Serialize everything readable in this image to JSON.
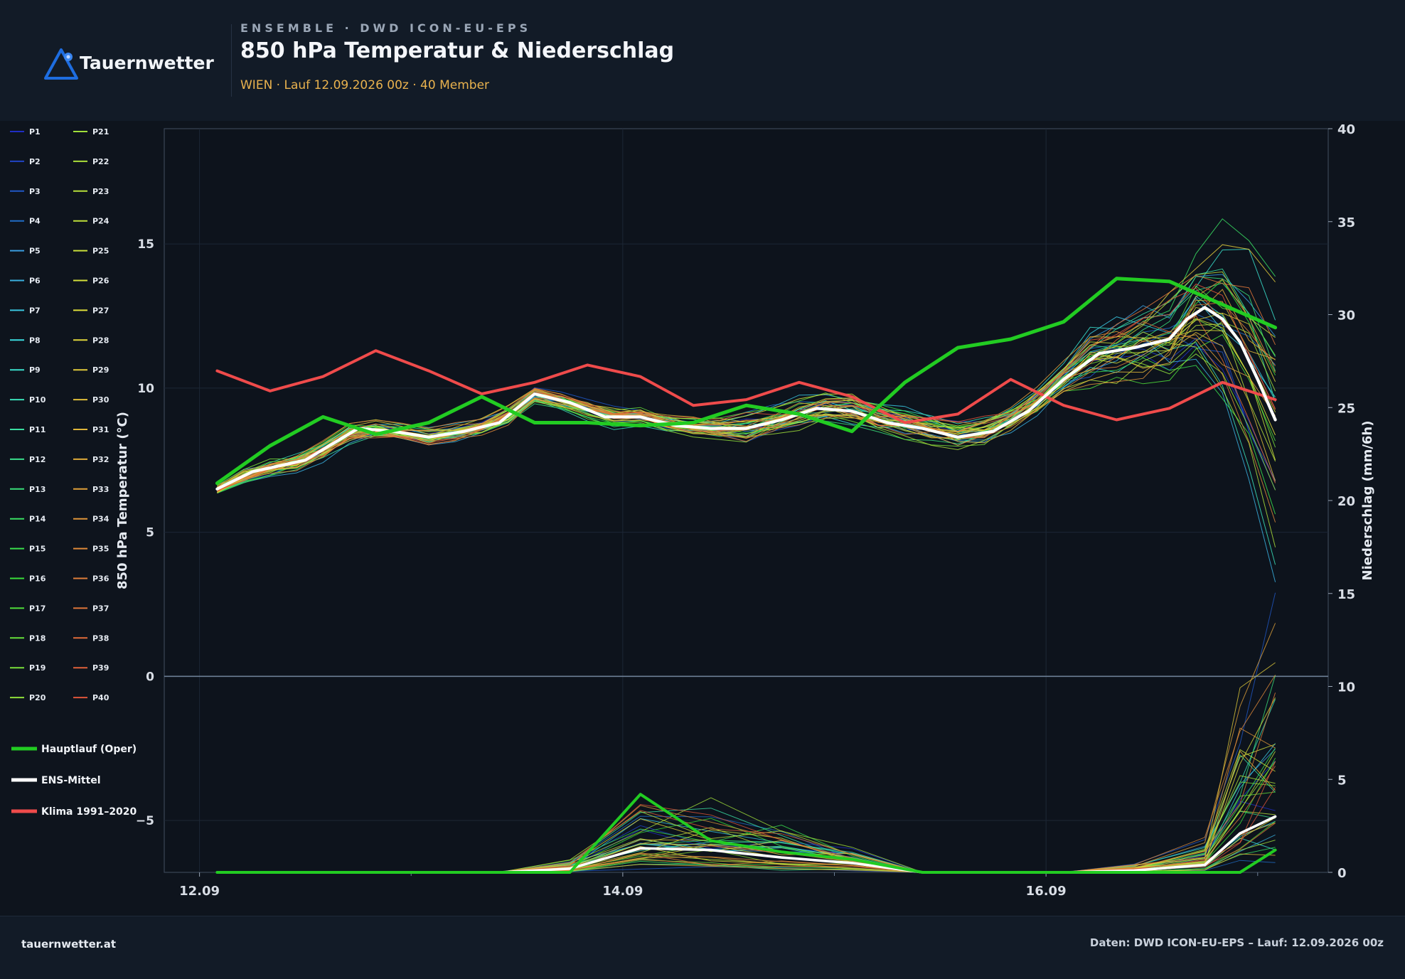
{
  "header": {
    "brand": "Tauernwetter",
    "kicker": "ENSEMBLE · DWD ICON-EU-EPS",
    "title": "850 hPa Temperatur & Niederschlag",
    "subtitle": "WIEN · Lauf 12.09.2026 00z · 40 Member"
  },
  "footer": {
    "site": "tauernwetter.at",
    "source": "Daten: DWD ICON-EU-EPS – Lauf: 12.09.2026 00z"
  },
  "legend": {
    "members": [
      "P1",
      "P2",
      "P3",
      "P4",
      "P5",
      "P6",
      "P7",
      "P8",
      "P9",
      "P10",
      "P11",
      "P12",
      "P13",
      "P14",
      "P15",
      "P16",
      "P17",
      "P18",
      "P19",
      "P20",
      "P21",
      "P22",
      "P23",
      "P24",
      "P25",
      "P26",
      "P27",
      "P28",
      "P29",
      "P30",
      "P31",
      "P32",
      "P33",
      "P34",
      "P35",
      "P36",
      "P37",
      "P38",
      "P39",
      "P40"
    ],
    "oper": "Hauptlauf (Oper)",
    "mean": "ENS-Mittel",
    "clim": "Klima 1991–2020"
  },
  "colors": {
    "oper": "#22cc22",
    "mean": "#ffffff",
    "clim": "#ef4b4b",
    "accent": "#e9b24e",
    "brand": "#1e6de0"
  },
  "chart_data": {
    "type": "line",
    "xlabel": "",
    "ylabel": "850 hPa Temperatur (°C)",
    "ylabel_right": "Niederschlag (mm/6h)",
    "ylim": [
      -6.8,
      19
    ],
    "ylim_right": [
      0,
      40
    ],
    "yticks": [
      -5,
      0,
      5,
      10,
      15
    ],
    "yticks_right": [
      0,
      5,
      10,
      15,
      20,
      25,
      30,
      35,
      40
    ],
    "xticks": [
      "12.09",
      "14.09",
      "16.09"
    ],
    "xtick_positions": [
      0,
      48,
      96
    ],
    "xlim": [
      -4,
      128
    ],
    "grid": true,
    "legend_position": "left",
    "x_hours": [
      2,
      10,
      18,
      26,
      34,
      42,
      50,
      58,
      66,
      74,
      82,
      90,
      98,
      106,
      114,
      122
    ],
    "temperature": {
      "oper": [
        6.7,
        8.0,
        9.0,
        8.4,
        8.8,
        9.7,
        8.8,
        8.8,
        8.7,
        8.8,
        9.4,
        9.1,
        8.5,
        10.2,
        11.4,
        11.7,
        12.3,
        13.8,
        13.7,
        12.1
      ],
      "oper_x": [
        2,
        8,
        14,
        20,
        26,
        32,
        38,
        44,
        50,
        56,
        62,
        68,
        74,
        80,
        86,
        92,
        98,
        104,
        110,
        122
      ],
      "mean": [
        6.5,
        7.1,
        7.5,
        8.6,
        8.5,
        8.3,
        8.5,
        8.8,
        9.8,
        9.5,
        9.0,
        9.0,
        8.7,
        8.6,
        8.6,
        8.9,
        9.3,
        9.2,
        8.8,
        8.6,
        8.3,
        8.5,
        9.2,
        10.3,
        11.2,
        11.4,
        11.7,
        12.4,
        12.8,
        12.4,
        11.6,
        10.3,
        8.9
      ],
      "mean_x": [
        2,
        6,
        12,
        18,
        22,
        26,
        30,
        34,
        38,
        42,
        46,
        50,
        54,
        58,
        62,
        66,
        70,
        74,
        78,
        82,
        86,
        90,
        94,
        98,
        102,
        106,
        110,
        112,
        114,
        116,
        118,
        120,
        122
      ],
      "clim": [
        10.6,
        9.9,
        10.4,
        11.3,
        10.6,
        9.8,
        10.2,
        10.8,
        10.4,
        9.4,
        9.6,
        10.2,
        9.7,
        8.8,
        9.1,
        10.3,
        9.4,
        8.9,
        9.3,
        10.2,
        9.6
      ],
      "clim_x": [
        2,
        8,
        14,
        20,
        26,
        32,
        38,
        44,
        50,
        56,
        62,
        68,
        74,
        80,
        86,
        92,
        98,
        104,
        110,
        116,
        122
      ]
    },
    "precipitation": {
      "x": [
        2,
        10,
        18,
        26,
        34,
        42,
        50,
        58,
        66,
        74,
        82,
        90,
        98,
        106,
        114,
        118,
        122
      ],
      "oper": [
        0,
        0,
        0,
        0,
        0,
        0,
        4.2,
        1.7,
        1.1,
        0.7,
        0,
        0,
        0,
        0,
        0,
        0,
        1.2
      ],
      "mean": [
        0,
        0,
        0,
        0,
        0,
        0.2,
        1.3,
        1.2,
        0.8,
        0.5,
        0,
        0,
        0,
        0.1,
        0.4,
        2.1,
        3.0
      ]
    },
    "members_note": "40 Member (P1–P40)"
  }
}
